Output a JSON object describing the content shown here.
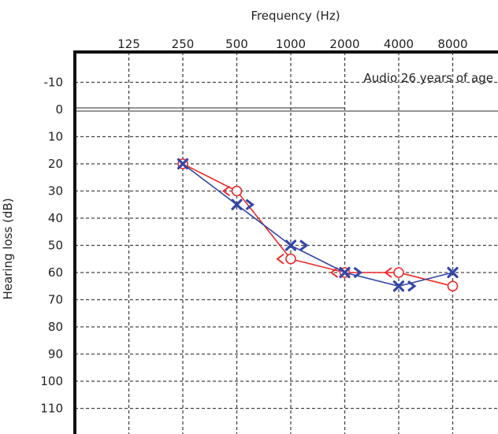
{
  "chart_data": {
    "type": "line",
    "title": "",
    "xlabel": "Frequency (Hz)",
    "ylabel": "Hearing loss (dB)",
    "annotation": "Audio 26 years of age",
    "x_scale": "log2",
    "y_inverted": true,
    "ylim": [
      -20,
      120
    ],
    "grid": true,
    "x_ticks": [
      125,
      250,
      500,
      1000,
      2000,
      4000,
      8000
    ],
    "x_tick_labels": [
      "125",
      "250",
      "500",
      "1000",
      "2000",
      "4000",
      "8000"
    ],
    "y_ticks": [
      -10,
      0,
      10,
      20,
      30,
      40,
      50,
      60,
      70,
      80,
      90,
      100,
      110
    ],
    "y_tick_labels": [
      "-10",
      "0",
      "10",
      "20",
      "30",
      "40",
      "50",
      "60",
      "70",
      "80",
      "90",
      "100",
      "110"
    ],
    "series": [
      {
        "color": "#ee2b2b",
        "air_marker": "O",
        "bone_marker": "<",
        "air": {
          "x": [
            250,
            500,
            1000,
            2000,
            4000,
            8000
          ],
          "y": [
            20,
            30,
            55,
            60,
            60,
            65
          ]
        },
        "bone": {
          "x": [
            500,
            1000,
            2000,
            4000
          ],
          "y": [
            30,
            55,
            60,
            60
          ]
        }
      },
      {
        "color": "#3346a8",
        "air_marker": "X",
        "bone_marker": ">",
        "air": {
          "x": [
            250,
            500,
            1000,
            2000,
            4000,
            8000
          ],
          "y": [
            20,
            35,
            50,
            60,
            65,
            60
          ]
        },
        "bone": {
          "x": [
            500,
            1000,
            2000,
            4000
          ],
          "y": [
            35,
            50,
            60,
            65
          ]
        }
      }
    ]
  }
}
